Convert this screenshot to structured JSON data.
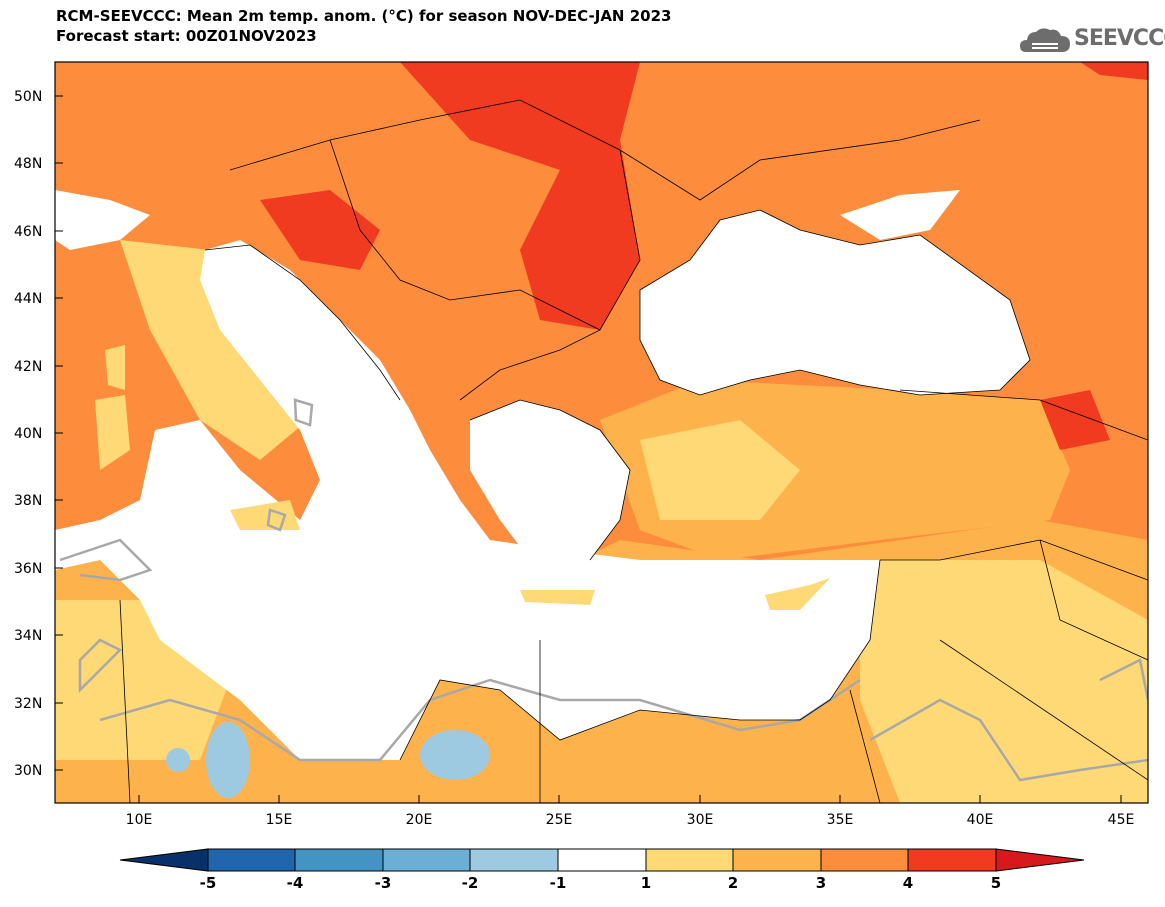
{
  "title": {
    "line1": "RCM-SEEVCCC: Mean 2m temp. anom. (°C) for season NOV-DEC-JAN 2023",
    "line2": "Forecast start: 00Z01NOV2023"
  },
  "logo": {
    "text": "SEEVCCC",
    "icon": "cloud-icon",
    "color": "#6d6d6d"
  },
  "map": {
    "region": "Southeast Europe / Eastern Mediterranean",
    "lat_labels": [
      "50N",
      "48N",
      "46N",
      "44N",
      "42N",
      "40N",
      "38N",
      "36N",
      "34N",
      "32N",
      "30N"
    ],
    "lon_labels": [
      "10E",
      "15E",
      "20E",
      "25E",
      "30E",
      "35E",
      "40E",
      "45E"
    ],
    "lon_range": [
      7,
      46
    ],
    "lat_range": [
      29,
      51
    ],
    "field": "2m temperature anomaly"
  },
  "colorbar": {
    "levels": [
      "-5",
      "-4",
      "-3",
      "-2",
      "-1",
      "1",
      "2",
      "3",
      "4",
      "5"
    ],
    "colors": [
      "#08306b",
      "#2166ac",
      "#4393c3",
      "#6baed6",
      "#9ecae1",
      "#ffffff",
      "#fed976",
      "#feb24c",
      "#fd8d3c",
      "#f03b20",
      "#bd0026"
    ],
    "min_arrow_color": "#08306b",
    "max_arrow_color": "#d7191c"
  }
}
